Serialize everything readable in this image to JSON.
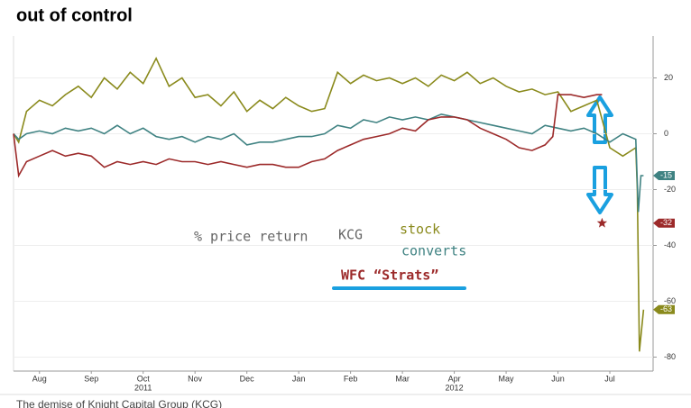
{
  "title": "out of control",
  "caption": "The demise of Knight Capital Group (KCG)",
  "chart_data": {
    "type": "line",
    "xlim": [
      0,
      12.3
    ],
    "ylim": [
      -85,
      35
    ],
    "xticks": [
      {
        "value": 0.5,
        "label": "Aug"
      },
      {
        "value": 1.5,
        "label": "Sep"
      },
      {
        "value": 2.5,
        "label": "Oct"
      },
      {
        "value": 3.5,
        "label": "Nov"
      },
      {
        "value": 4.5,
        "label": "Dec"
      },
      {
        "value": 5.5,
        "label": "Jan"
      },
      {
        "value": 6.5,
        "label": "Feb"
      },
      {
        "value": 7.5,
        "label": "Mar"
      },
      {
        "value": 8.5,
        "label": "Apr"
      },
      {
        "value": 9.5,
        "label": "May"
      },
      {
        "value": 10.5,
        "label": "Jun"
      },
      {
        "value": 11.5,
        "label": "Jul"
      }
    ],
    "years": [
      {
        "value": 2.5,
        "label": "2011"
      },
      {
        "value": 8.5,
        "label": "2012"
      }
    ],
    "yticks": [
      20,
      0,
      -20,
      -40,
      -60,
      -80
    ],
    "annotations": [
      "% price return",
      "KCG",
      "stock",
      "converts",
      "WFC “Strats”"
    ],
    "series": [
      {
        "name": "stock",
        "color": "#8a8a1c",
        "x": [
          0,
          0.1,
          0.25,
          0.5,
          0.75,
          1,
          1.25,
          1.5,
          1.75,
          2,
          2.25,
          2.5,
          2.75,
          3,
          3.25,
          3.5,
          3.75,
          4,
          4.25,
          4.5,
          4.75,
          5,
          5.25,
          5.5,
          5.75,
          6,
          6.25,
          6.5,
          6.75,
          7,
          7.25,
          7.5,
          7.75,
          8,
          8.25,
          8.5,
          8.75,
          9,
          9.25,
          9.5,
          9.75,
          10,
          10.25,
          10.5,
          10.75,
          11,
          11.25,
          11.5,
          11.75,
          12,
          12.03,
          12.07,
          12.15
        ],
        "values": [
          0,
          -3,
          8,
          12,
          10,
          14,
          17,
          13,
          20,
          16,
          22,
          18,
          27,
          17,
          20,
          13,
          14,
          10,
          15,
          8,
          12,
          9,
          13,
          10,
          8,
          9,
          22,
          18,
          21,
          19,
          20,
          18,
          20,
          17,
          21,
          19,
          22,
          18,
          20,
          17,
          15,
          16,
          14,
          15,
          8,
          10,
          12,
          -5,
          -8,
          -5,
          -20,
          -78,
          -63
        ],
        "end_label": "-63"
      },
      {
        "name": "converts",
        "color": "#3f8282",
        "x": [
          0,
          0.1,
          0.25,
          0.5,
          0.75,
          1,
          1.25,
          1.5,
          1.75,
          2,
          2.25,
          2.5,
          2.75,
          3,
          3.25,
          3.5,
          3.75,
          4,
          4.25,
          4.5,
          4.75,
          5,
          5.25,
          5.5,
          5.75,
          6,
          6.25,
          6.5,
          6.75,
          7,
          7.25,
          7.5,
          7.75,
          8,
          8.25,
          8.5,
          8.75,
          9,
          9.25,
          9.5,
          9.75,
          10,
          10.25,
          10.5,
          10.75,
          11,
          11.25,
          11.5,
          11.75,
          12,
          12.05,
          12.1,
          12.15
        ],
        "values": [
          0,
          -2,
          0,
          1,
          0,
          2,
          1,
          2,
          0,
          3,
          0,
          2,
          -1,
          -2,
          -1,
          -3,
          -1,
          -2,
          0,
          -4,
          -3,
          -3,
          -2,
          -1,
          -1,
          0,
          3,
          2,
          5,
          4,
          6,
          5,
          6,
          5,
          7,
          6,
          5,
          4,
          3,
          2,
          1,
          0,
          3,
          2,
          1,
          2,
          0,
          -3,
          0,
          -2,
          -28,
          -15,
          -15
        ],
        "end_label": "-15"
      },
      {
        "name": "WFC",
        "color": "#9c2a2a",
        "x": [
          0,
          0.1,
          0.25,
          0.5,
          0.75,
          1,
          1.25,
          1.5,
          1.75,
          2,
          2.25,
          2.5,
          2.75,
          3,
          3.25,
          3.5,
          3.75,
          4,
          4.25,
          4.5,
          4.75,
          5,
          5.25,
          5.5,
          5.75,
          6,
          6.25,
          6.5,
          6.75,
          7,
          7.25,
          7.5,
          7.75,
          8,
          8.25,
          8.5,
          8.75,
          9,
          9.25,
          9.5,
          9.75,
          10,
          10.25,
          10.4,
          10.5,
          10.75,
          11,
          11.25,
          11.35
        ],
        "values": [
          0,
          -15,
          -10,
          -8,
          -6,
          -8,
          -7,
          -8,
          -12,
          -10,
          -11,
          -10,
          -11,
          -9,
          -10,
          -10,
          -11,
          -10,
          -11,
          -12,
          -11,
          -11,
          -12,
          -12,
          -10,
          -9,
          -6,
          -4,
          -2,
          -1,
          0,
          2,
          1,
          5,
          6,
          6,
          5,
          2,
          0,
          -2,
          -5,
          -6,
          -4,
          -1,
          14,
          14,
          13,
          14,
          14
        ],
        "marker_x": 11.35,
        "marker_value": -32,
        "end_label": "-32"
      }
    ]
  }
}
